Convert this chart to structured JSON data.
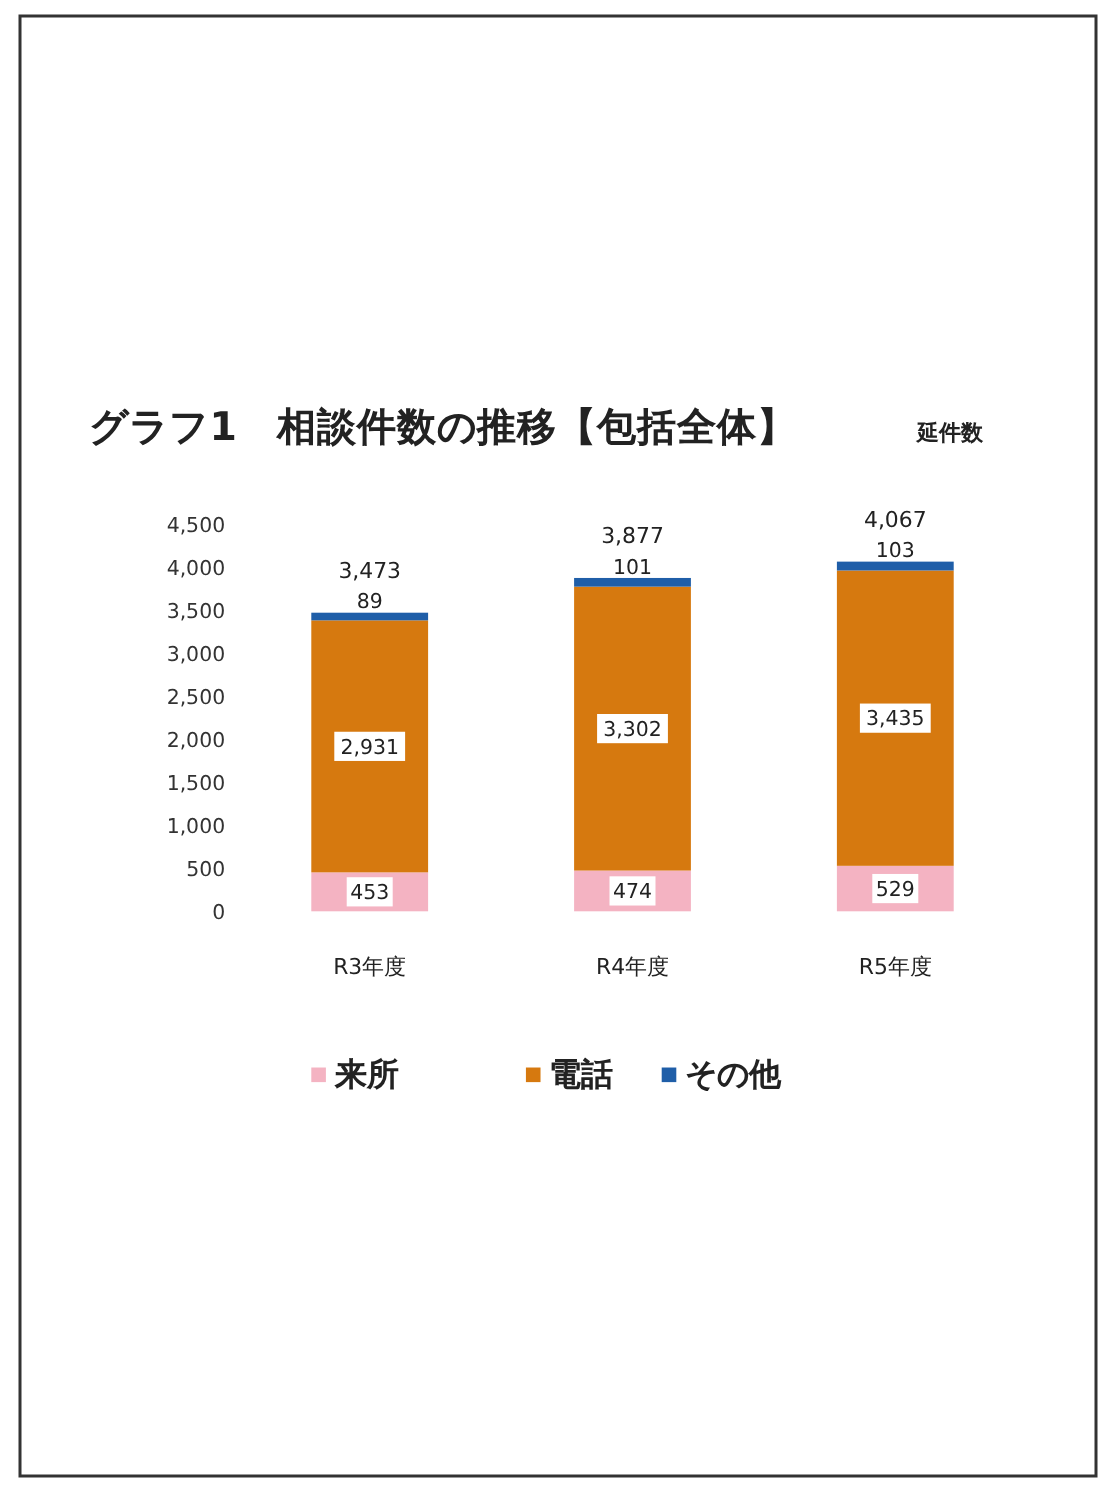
{
  "chart_data": {
    "type": "bar",
    "stacked": true,
    "title": "グラフ1　相談件数の推移【包括全体】",
    "ylabel": "延件数",
    "categories": [
      "R3年度",
      "R4年度",
      "R5年度"
    ],
    "series": [
      {
        "name": "来所",
        "color": "#f4b3c2",
        "values": [
          453,
          474,
          529
        ],
        "value_labels": [
          "453",
          "474",
          "529"
        ]
      },
      {
        "name": "電話",
        "color": "#d6790f",
        "values": [
          2931,
          3302,
          3435
        ],
        "value_labels": [
          "2,931",
          "3,302",
          "3,435"
        ]
      },
      {
        "name": "その他",
        "color": "#1f5ea8",
        "values": [
          89,
          101,
          103
        ],
        "value_labels": [
          "89",
          "101",
          "103"
        ]
      }
    ],
    "totals": [
      "3,473",
      "3,877",
      "4,067"
    ],
    "ylim": [
      0,
      4500
    ],
    "yticks": [
      {
        "value": 0,
        "label": "0"
      },
      {
        "value": 500,
        "label": "500"
      },
      {
        "value": 1000,
        "label": "1,000"
      },
      {
        "value": 1500,
        "label": "1,500"
      },
      {
        "value": 2000,
        "label": "2,000"
      },
      {
        "value": 2500,
        "label": "2,500"
      },
      {
        "value": 3000,
        "label": "3,000"
      },
      {
        "value": 3500,
        "label": "3,500"
      },
      {
        "value": 4000,
        "label": "4,000"
      },
      {
        "value": 4500,
        "label": "4,500"
      }
    ],
    "legend": "bottom"
  }
}
